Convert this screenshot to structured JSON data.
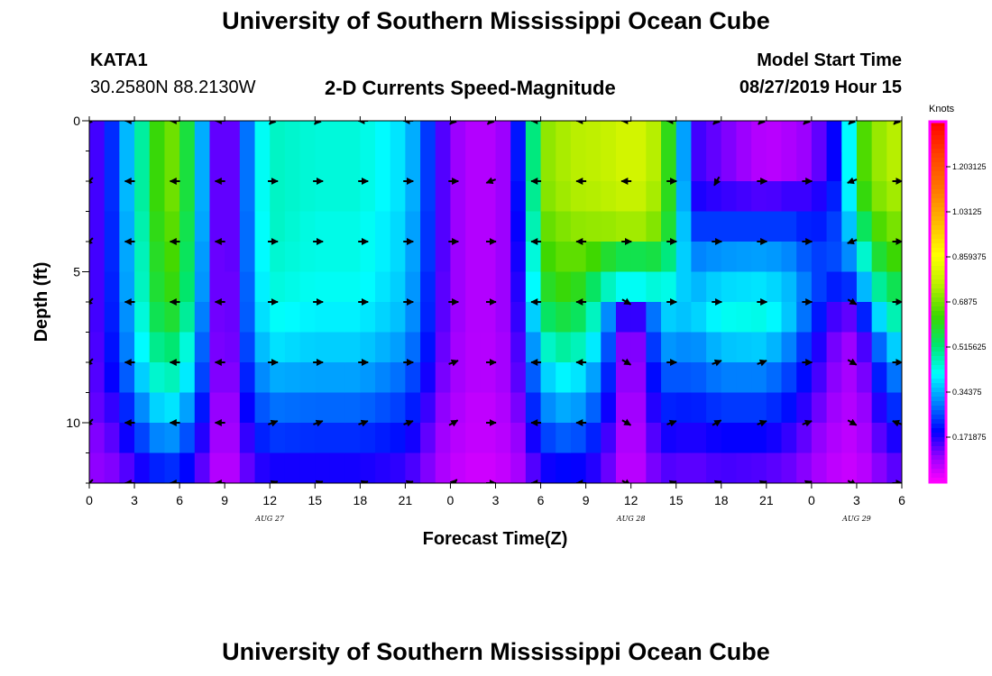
{
  "header": {
    "title": "University of Southern Mississippi Ocean Cube",
    "station_id": "KATA1",
    "station_coords": "30.2580N 88.2130W",
    "plot_title": "2-D Currents Speed-Magnitude",
    "model_start_label": "Model Start Time",
    "model_start_value": "08/27/2019 Hour 15"
  },
  "footer": {
    "title": "University of Southern Mississippi Ocean Cube"
  },
  "chart_data": {
    "type": "heatmap",
    "title": "2-D Currents Speed-Magnitude",
    "xlabel": "Forecast Time(Z)",
    "ylabel": "Depth (ft)",
    "xlim": [
      0,
      54
    ],
    "ylim": [
      0,
      12
    ],
    "y_inverted": true,
    "x_ticks": [
      0,
      3,
      6,
      9,
      12,
      15,
      18,
      21,
      24,
      27,
      30,
      33,
      36,
      39,
      42,
      45,
      48,
      51,
      54
    ],
    "x_tick_labels": [
      "0",
      "3",
      "6",
      "9",
      "12",
      "15",
      "18",
      "21",
      "0",
      "3",
      "6",
      "9",
      "12",
      "15",
      "18",
      "21",
      "0",
      "3",
      "6"
    ],
    "y_ticks": [
      0,
      5,
      10
    ],
    "y_tick_labels": [
      "0",
      "5",
      "10"
    ],
    "date_labels": [
      {
        "hour": 12,
        "text": "AUG 27"
      },
      {
        "hour": 36,
        "text": "AUG 28"
      },
      {
        "hour": 51,
        "text": "AUG 29"
      }
    ],
    "colorbar": {
      "unit": "Knots",
      "range": [
        0,
        1.375
      ],
      "ticks": [
        1.203125,
        1.03125,
        0.859375,
        0.6875,
        0.515625,
        0.34375,
        0.171875
      ],
      "labels": [
        "1.203125",
        "1.03125",
        "0.859375",
        "0.6875",
        "0.515625",
        "0.34375",
        "0.171875"
      ]
    },
    "depth_rows": [
      0,
      1,
      2,
      3,
      4,
      5,
      6,
      7,
      8,
      9,
      10,
      11,
      12
    ],
    "speed_profile_knots": [
      {
        "hour": 0,
        "speeds": [
          0.12,
          0.12,
          0.12,
          0.12,
          0.12,
          0.12,
          0.12,
          0.12,
          0.12,
          0.12,
          0.1,
          0.1,
          0.08
        ]
      },
      {
        "hour": 1,
        "speeds": [
          0.18,
          0.18,
          0.18,
          0.18,
          0.18,
          0.18,
          0.18,
          0.17,
          0.16,
          0.14,
          0.12,
          0.1,
          0.08
        ]
      },
      {
        "hour": 2,
        "speeds": [
          0.28,
          0.28,
          0.28,
          0.27,
          0.27,
          0.26,
          0.25,
          0.24,
          0.22,
          0.18,
          0.15,
          0.12,
          0.09
        ]
      },
      {
        "hour": 3,
        "speeds": [
          0.42,
          0.42,
          0.42,
          0.41,
          0.4,
          0.4,
          0.38,
          0.36,
          0.32,
          0.27,
          0.22,
          0.16,
          0.12
        ]
      },
      {
        "hour": 4,
        "speeds": [
          0.55,
          0.55,
          0.55,
          0.54,
          0.53,
          0.52,
          0.5,
          0.46,
          0.42,
          0.35,
          0.28,
          0.2,
          0.14
        ]
      },
      {
        "hour": 5,
        "speeds": [
          0.7,
          0.7,
          0.7,
          0.68,
          0.66,
          0.64,
          0.6,
          0.54,
          0.48,
          0.4,
          0.33,
          0.24,
          0.16
        ]
      },
      {
        "hour": 6,
        "speeds": [
          0.66,
          0.66,
          0.66,
          0.64,
          0.62,
          0.6,
          0.56,
          0.5,
          0.45,
          0.38,
          0.3,
          0.22,
          0.15
        ]
      },
      {
        "hour": 7,
        "speeds": [
          0.48,
          0.48,
          0.48,
          0.47,
          0.46,
          0.45,
          0.42,
          0.38,
          0.34,
          0.28,
          0.22,
          0.17,
          0.12
        ]
      },
      {
        "hour": 8,
        "speeds": [
          0.2,
          0.2,
          0.2,
          0.2,
          0.19,
          0.19,
          0.18,
          0.17,
          0.16,
          0.14,
          0.12,
          0.1,
          0.08
        ]
      },
      {
        "hour": 9,
        "speeds": [
          0.06,
          0.06,
          0.06,
          0.06,
          0.06,
          0.06,
          0.06,
          0.06,
          0.06,
          0.05,
          0.05,
          0.04,
          0.04
        ]
      },
      {
        "hour": 10,
        "speeds": [
          0.2,
          0.2,
          0.2,
          0.2,
          0.2,
          0.19,
          0.19,
          0.18,
          0.16,
          0.14,
          0.12,
          0.1,
          0.08
        ]
      },
      {
        "hour": 11,
        "speeds": [
          0.38,
          0.38,
          0.38,
          0.37,
          0.37,
          0.36,
          0.35,
          0.32,
          0.28,
          0.24,
          0.2,
          0.16,
          0.12
        ]
      },
      {
        "hour": 12,
        "speeds": [
          0.46,
          0.46,
          0.46,
          0.46,
          0.45,
          0.44,
          0.42,
          0.39,
          0.34,
          0.29,
          0.24,
          0.18,
          0.13
        ]
      },
      {
        "hour": 15,
        "speeds": [
          0.44,
          0.44,
          0.44,
          0.43,
          0.43,
          0.42,
          0.4,
          0.37,
          0.33,
          0.28,
          0.23,
          0.18,
          0.13
        ]
      },
      {
        "hour": 18,
        "speeds": [
          0.44,
          0.44,
          0.44,
          0.43,
          0.43,
          0.42,
          0.4,
          0.37,
          0.33,
          0.28,
          0.23,
          0.18,
          0.13
        ]
      },
      {
        "hour": 21,
        "speeds": [
          0.38,
          0.38,
          0.38,
          0.37,
          0.37,
          0.36,
          0.35,
          0.32,
          0.28,
          0.24,
          0.2,
          0.16,
          0.12
        ]
      },
      {
        "hour": 22,
        "speeds": [
          0.3,
          0.3,
          0.3,
          0.29,
          0.29,
          0.28,
          0.27,
          0.25,
          0.22,
          0.19,
          0.16,
          0.13,
          0.1
        ]
      },
      {
        "hour": 23,
        "speeds": [
          0.18,
          0.18,
          0.18,
          0.18,
          0.18,
          0.17,
          0.17,
          0.16,
          0.14,
          0.12,
          0.1,
          0.09,
          0.07
        ]
      },
      {
        "hour": 24,
        "speeds": [
          0.1,
          0.1,
          0.1,
          0.1,
          0.1,
          0.1,
          0.1,
          0.09,
          0.09,
          0.08,
          0.07,
          0.06,
          0.06
        ]
      },
      {
        "hour": 26,
        "speeds": [
          0.06,
          0.06,
          0.06,
          0.06,
          0.06,
          0.06,
          0.06,
          0.06,
          0.06,
          0.05,
          0.05,
          0.04,
          0.04
        ]
      },
      {
        "hour": 28,
        "speeds": [
          0.1,
          0.1,
          0.1,
          0.1,
          0.1,
          0.1,
          0.1,
          0.09,
          0.09,
          0.08,
          0.07,
          0.06,
          0.06
        ]
      },
      {
        "hour": 29,
        "speeds": [
          0.32,
          0.32,
          0.3,
          0.28,
          0.26,
          0.24,
          0.22,
          0.2,
          0.18,
          0.15,
          0.12,
          0.1,
          0.08
        ]
      },
      {
        "hour": 30,
        "speeds": [
          0.7,
          0.7,
          0.69,
          0.66,
          0.62,
          0.58,
          0.52,
          0.44,
          0.36,
          0.3,
          0.24,
          0.18,
          0.13
        ]
      },
      {
        "hour": 32,
        "speeds": [
          0.75,
          0.75,
          0.74,
          0.71,
          0.68,
          0.64,
          0.58,
          0.5,
          0.42,
          0.35,
          0.28,
          0.2,
          0.15
        ]
      },
      {
        "hour": 34,
        "speeds": [
          0.76,
          0.76,
          0.75,
          0.72,
          0.62,
          0.5,
          0.42,
          0.36,
          0.3,
          0.25,
          0.2,
          0.16,
          0.12
        ]
      },
      {
        "hour": 35,
        "speeds": [
          0.78,
          0.78,
          0.76,
          0.72,
          0.55,
          0.42,
          0.2,
          0.16,
          0.14,
          0.12,
          0.1,
          0.09,
          0.07
        ]
      },
      {
        "hour": 36,
        "speeds": [
          0.8,
          0.8,
          0.78,
          0.74,
          0.56,
          0.42,
          0.12,
          0.06,
          0.06,
          0.05,
          0.05,
          0.04,
          0.04
        ]
      },
      {
        "hour": 37,
        "speeds": [
          0.78,
          0.78,
          0.76,
          0.72,
          0.55,
          0.42,
          0.2,
          0.16,
          0.14,
          0.12,
          0.1,
          0.09,
          0.07
        ]
      },
      {
        "hour": 38,
        "speeds": [
          0.72,
          0.72,
          0.71,
          0.68,
          0.58,
          0.46,
          0.38,
          0.32,
          0.26,
          0.22,
          0.18,
          0.14,
          0.11
        ]
      },
      {
        "hour": 39,
        "speeds": [
          0.5,
          0.5,
          0.5,
          0.48,
          0.44,
          0.4,
          0.36,
          0.32,
          0.27,
          0.22,
          0.18,
          0.14,
          0.1
        ]
      },
      {
        "hour": 40,
        "speeds": [
          0.16,
          0.16,
          0.18,
          0.24,
          0.3,
          0.34,
          0.36,
          0.3,
          0.26,
          0.21,
          0.17,
          0.13,
          0.1
        ]
      },
      {
        "hour": 42,
        "speeds": [
          0.12,
          0.12,
          0.16,
          0.24,
          0.32,
          0.38,
          0.42,
          0.36,
          0.3,
          0.24,
          0.19,
          0.15,
          0.11
        ]
      },
      {
        "hour": 45,
        "speeds": [
          0.06,
          0.06,
          0.14,
          0.24,
          0.33,
          0.39,
          0.43,
          0.37,
          0.3,
          0.24,
          0.19,
          0.14,
          0.1
        ]
      },
      {
        "hour": 47,
        "speeds": [
          0.08,
          0.08,
          0.16,
          0.24,
          0.3,
          0.34,
          0.34,
          0.28,
          0.23,
          0.19,
          0.15,
          0.12,
          0.09
        ]
      },
      {
        "hour": 48,
        "speeds": [
          0.1,
          0.1,
          0.15,
          0.2,
          0.24,
          0.26,
          0.24,
          0.2,
          0.17,
          0.14,
          0.11,
          0.09,
          0.07
        ]
      },
      {
        "hour": 50,
        "speeds": [
          0.22,
          0.22,
          0.24,
          0.26,
          0.26,
          0.2,
          0.12,
          0.09,
          0.08,
          0.07,
          0.06,
          0.05,
          0.05
        ]
      },
      {
        "hour": 51,
        "speeds": [
          0.6,
          0.6,
          0.56,
          0.46,
          0.36,
          0.26,
          0.14,
          0.09,
          0.08,
          0.07,
          0.06,
          0.05,
          0.05
        ]
      },
      {
        "hour": 52,
        "speeds": [
          0.7,
          0.7,
          0.68,
          0.62,
          0.54,
          0.44,
          0.3,
          0.2,
          0.15,
          0.12,
          0.1,
          0.08,
          0.06
        ]
      },
      {
        "hour": 53,
        "speeds": [
          0.74,
          0.74,
          0.72,
          0.68,
          0.62,
          0.54,
          0.46,
          0.36,
          0.28,
          0.22,
          0.17,
          0.13,
          0.1
        ]
      },
      {
        "hour": 54,
        "speeds": [
          0.76,
          0.76,
          0.74,
          0.7,
          0.64,
          0.56,
          0.48,
          0.38,
          0.3,
          0.24,
          0.18,
          0.14,
          0.11
        ]
      }
    ],
    "vector_rows_depth_ft": [
      0,
      2,
      4,
      6,
      8,
      10,
      12
    ],
    "vector_columns_hour": [
      0,
      2.7,
      5.7,
      8.7,
      12.2,
      15.2,
      18.2,
      21.2,
      24.2,
      26.7,
      29.7,
      32.7,
      35.7,
      38.7,
      41.7,
      44.7,
      47.7,
      50.7,
      53.7
    ],
    "vector_directions_deg": [
      [
        225,
        180,
        180,
        180,
        225,
        225,
        180,
        180,
        225,
        225,
        180,
        180,
        180,
        180,
        225,
        225,
        225,
        225,
        225
      ],
      [
        225,
        180,
        180,
        180,
        0,
        0,
        0,
        0,
        0,
        200,
        180,
        180,
        180,
        0,
        240,
        0,
        0,
        200,
        0
      ],
      [
        225,
        180,
        180,
        180,
        0,
        0,
        0,
        0,
        0,
        0,
        180,
        180,
        0,
        0,
        0,
        0,
        0,
        200,
        0
      ],
      [
        225,
        180,
        180,
        180,
        0,
        0,
        0,
        0,
        0,
        0,
        180,
        180,
        330,
        0,
        0,
        0,
        0,
        330,
        0
      ],
      [
        225,
        180,
        180,
        180,
        0,
        0,
        0,
        0,
        20,
        0,
        180,
        180,
        330,
        0,
        20,
        20,
        0,
        330,
        0
      ],
      [
        225,
        180,
        180,
        180,
        20,
        20,
        20,
        20,
        30,
        0,
        180,
        180,
        330,
        20,
        30,
        20,
        20,
        330,
        160
      ],
      [
        225,
        180,
        180,
        180,
        20,
        20,
        20,
        20,
        45,
        0,
        180,
        180,
        330,
        20,
        20,
        20,
        20,
        330,
        0
      ]
    ],
    "vector_arrow_color": "#000000",
    "frame_color": "#000000",
    "colorbar_frame_color": "#ff00ff"
  }
}
